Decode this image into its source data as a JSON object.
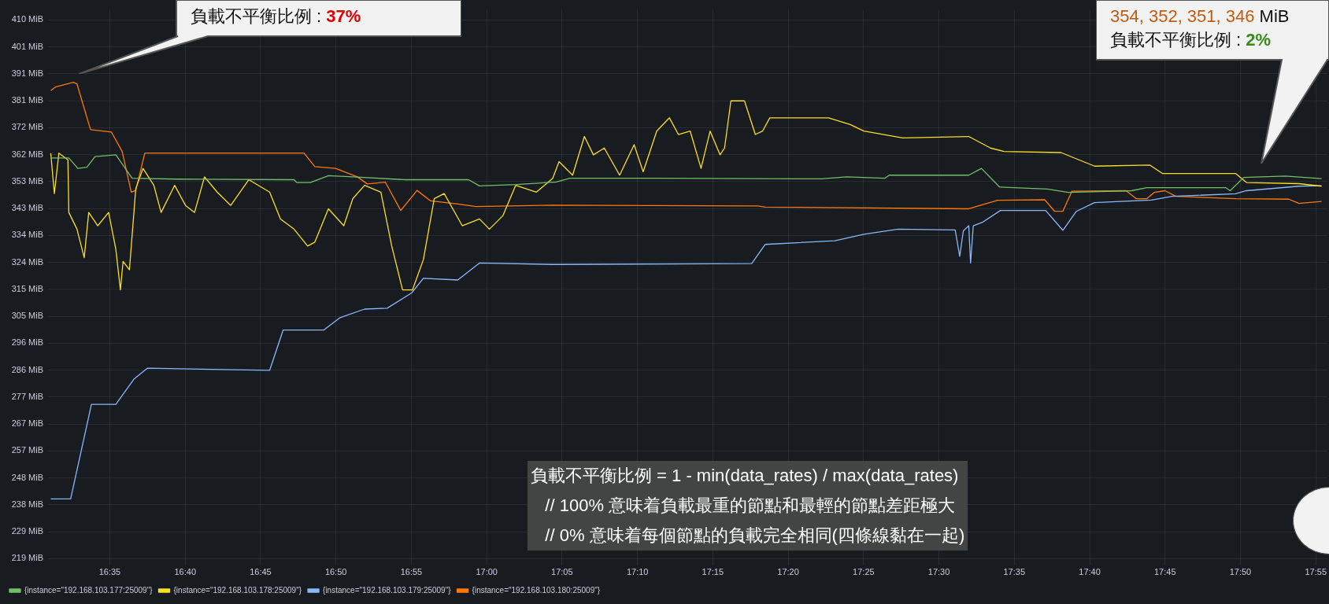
{
  "chart_data": {
    "type": "line",
    "marker": "none",
    "grid": true,
    "legend": "bottom left",
    "xlim": [
      16.515,
      17.93
    ],
    "xticks": [
      {
        "value": 16.5833,
        "label": "16:35"
      },
      {
        "value": 16.6667,
        "label": "16:40"
      },
      {
        "value": 16.75,
        "label": "16:45"
      },
      {
        "value": 16.8333,
        "label": "16:50"
      },
      {
        "value": 16.9167,
        "label": "16:55"
      },
      {
        "value": 17,
        "label": "17:00"
      },
      {
        "value": 17.0833,
        "label": "17:05"
      },
      {
        "value": 17.1667,
        "label": "17:10"
      },
      {
        "value": 17.25,
        "label": "17:15"
      },
      {
        "value": 17.3333,
        "label": "17:20"
      },
      {
        "value": 17.4167,
        "label": "17:25"
      },
      {
        "value": 17.5,
        "label": "17:30"
      },
      {
        "value": 17.5833,
        "label": "17:35"
      },
      {
        "value": 17.6667,
        "label": "17:40"
      },
      {
        "value": 17.75,
        "label": "17:45"
      },
      {
        "value": 17.8333,
        "label": "17:50"
      },
      {
        "value": 17.9167,
        "label": "17:55"
      }
    ],
    "ylim": [
      217,
      413.6
    ],
    "yticks": [
      {
        "value": 219.35,
        "label": "219 MiB"
      },
      {
        "value": 228.88,
        "label": "229 MiB"
      },
      {
        "value": 238.42,
        "label": "238 MiB"
      },
      {
        "value": 247.96,
        "label": "248 MiB"
      },
      {
        "value": 257.49,
        "label": "257 MiB"
      },
      {
        "value": 267.03,
        "label": "267 MiB"
      },
      {
        "value": 276.57,
        "label": "277 MiB"
      },
      {
        "value": 286.1,
        "label": "286 MiB"
      },
      {
        "value": 295.64,
        "label": "296 MiB"
      },
      {
        "value": 305.18,
        "label": "305 MiB"
      },
      {
        "value": 314.71,
        "label": "315 MiB"
      },
      {
        "value": 324.25,
        "label": "324 MiB"
      },
      {
        "value": 333.79,
        "label": "334 MiB"
      },
      {
        "value": 343.32,
        "label": "343 MiB"
      },
      {
        "value": 352.86,
        "label": "353 MiB"
      },
      {
        "value": 362.4,
        "label": "362 MiB"
      },
      {
        "value": 371.93,
        "label": "372 MiB"
      },
      {
        "value": 381.47,
        "label": "381 MiB"
      },
      {
        "value": 391.01,
        "label": "391 MiB"
      },
      {
        "value": 400.54,
        "label": "401 MiB"
      },
      {
        "value": 410.08,
        "label": "410 MiB"
      }
    ],
    "series": [
      {
        "name": "{instance=\"192.168.103.177:25009\"}",
        "color": "#73bf69",
        "x": [
          16.518,
          16.538,
          16.548,
          16.558,
          16.567,
          16.59,
          16.608,
          16.658,
          16.787,
          16.79,
          16.805,
          16.825,
          16.852,
          16.91,
          16.98,
          16.992,
          17.033,
          17.077,
          17.092,
          17.185,
          17.37,
          17.398,
          17.44,
          17.445,
          17.533,
          17.547,
          17.567,
          17.62,
          17.643,
          17.713,
          17.73,
          17.817,
          17.822,
          17.837,
          17.883,
          17.923
        ],
        "values": [
          361.2,
          361.2,
          357.5,
          357.9,
          361.7,
          362.3,
          354.0,
          353.7,
          353.5,
          352.5,
          352.5,
          354.9,
          354.5,
          353.5,
          353.5,
          351.3,
          351.8,
          352.7,
          354.0,
          354.0,
          353.8,
          354.5,
          354.0,
          355.1,
          355.1,
          357.5,
          350.9,
          350.2,
          349.0,
          349.6,
          350.7,
          350.7,
          349.6,
          354.3,
          354.8,
          353.9
        ]
      },
      {
        "name": "{instance=\"192.168.103.178:25009\"}",
        "color": "#fade2a",
        "x": [
          16.518,
          16.522,
          16.527,
          16.537,
          16.538,
          16.547,
          16.555,
          16.56,
          16.57,
          16.582,
          16.59,
          16.595,
          16.598,
          16.605,
          16.612,
          16.62,
          16.632,
          16.64,
          16.655,
          16.667,
          16.677,
          16.688,
          16.702,
          16.717,
          16.737,
          16.76,
          16.772,
          16.787,
          16.802,
          16.81,
          16.825,
          16.842,
          16.852,
          16.865,
          16.883,
          16.895,
          16.907,
          16.918,
          16.93,
          16.942,
          16.953,
          16.973,
          16.992,
          17.003,
          17.018,
          17.032,
          17.055,
          17.073,
          17.08,
          17.095,
          17.108,
          17.118,
          17.13,
          17.147,
          17.163,
          17.173,
          17.188,
          17.202,
          17.212,
          17.225,
          17.237,
          17.247,
          17.258,
          17.263,
          17.27,
          17.285,
          17.297,
          17.305,
          17.313,
          17.378,
          17.402,
          17.417,
          17.46,
          17.533,
          17.557,
          17.572,
          17.635,
          17.672,
          17.733,
          17.747,
          17.828,
          17.84,
          17.898,
          17.923
        ],
        "values": [
          362.9,
          348.6,
          362.9,
          360.5,
          341.9,
          336.0,
          325.9,
          341.9,
          337.2,
          341.9,
          328.8,
          314.5,
          324.6,
          321.6,
          350.3,
          357.5,
          351.5,
          341.9,
          351.5,
          344.4,
          341.9,
          354.5,
          349.1,
          344.4,
          353.5,
          349.1,
          339.6,
          336.0,
          330.0,
          331.4,
          343.2,
          337.2,
          346.8,
          351.5,
          349.1,
          330.0,
          314.5,
          314.5,
          325.2,
          346.8,
          348.6,
          337.2,
          339.6,
          336.0,
          340.8,
          351.5,
          349.1,
          354.0,
          359.9,
          355.1,
          368.8,
          362.3,
          364.7,
          355.1,
          365.9,
          356.3,
          370.7,
          375.4,
          369.5,
          370.7,
          357.5,
          370.7,
          362.3,
          364.7,
          381.4,
          381.4,
          369.5,
          370.7,
          375.4,
          375.4,
          373.0,
          370.7,
          368.3,
          368.8,
          364.7,
          363.5,
          363.1,
          358.3,
          358.7,
          355.7,
          355.7,
          352.5,
          352.1,
          351.2
        ]
      },
      {
        "name": "{instance=\"192.168.103.179:25009\"}",
        "color": "#8ab8ff",
        "x": [
          16.518,
          16.54,
          16.563,
          16.59,
          16.61,
          16.625,
          16.76,
          16.775,
          16.82,
          16.838,
          16.865,
          16.89,
          16.917,
          16.93,
          16.968,
          16.992,
          17.073,
          17.293,
          17.308,
          17.385,
          17.417,
          17.455,
          17.518,
          17.523,
          17.527,
          17.533,
          17.535,
          17.538,
          17.548,
          17.568,
          17.618,
          17.637,
          17.652,
          17.672,
          17.735,
          17.758,
          17.828,
          17.84,
          17.898,
          17.923
        ],
        "values": [
          240.5,
          240.5,
          274.0,
          274.0,
          282.9,
          286.8,
          286.0,
          300.3,
          300.3,
          304.7,
          307.7,
          308.0,
          313.4,
          318.6,
          318.0,
          324.0,
          323.5,
          323.8,
          330.6,
          331.9,
          334.2,
          336.0,
          335.7,
          326.4,
          335.4,
          337.2,
          324.0,
          337.2,
          338.4,
          342.6,
          342.6,
          335.6,
          342.3,
          345.4,
          346.3,
          347.6,
          348.5,
          349.6,
          351.2,
          351.4
        ]
      },
      {
        "name": "{instance=\"192.168.103.180:25009\"}",
        "color": "#ff780a",
        "x": [
          16.518,
          16.523,
          16.543,
          16.547,
          16.562,
          16.585,
          16.597,
          16.607,
          16.612,
          16.622,
          16.798,
          16.81,
          16.833,
          16.857,
          16.868,
          16.888,
          16.905,
          16.923,
          16.938,
          16.968,
          16.988,
          17.073,
          17.3,
          17.308,
          17.533,
          17.565,
          17.617,
          17.628,
          17.637,
          17.647,
          17.707,
          17.718,
          17.73,
          17.738,
          17.75,
          17.762,
          17.828,
          17.887,
          17.898,
          17.923
        ],
        "values": [
          385.0,
          386.3,
          388.0,
          387.4,
          371.2,
          370.4,
          363.5,
          349.1,
          349.7,
          362.9,
          362.9,
          358.1,
          357.5,
          354.5,
          352.0,
          352.6,
          342.6,
          349.7,
          346.0,
          344.9,
          344.0,
          344.5,
          344.2,
          343.8,
          343.2,
          346.2,
          346.4,
          342.3,
          342.3,
          349.4,
          349.6,
          346.8,
          346.8,
          349.0,
          349.6,
          347.6,
          346.8,
          346.6,
          345.1,
          345.8
        ]
      }
    ],
    "annotations": [
      "負載不平衡比例 : 37%",
      "354, 352, 351, 346 MiB\n負載不平衡比例 : 2%",
      "負載不平衡比例 = 1 - min(data_rates) / max(data_rates)\n   // 100% 意味着負載最重的節點和最輕的節點差距極大\n   // 0% 意味着每個節點的負載完全相同(四條線黏在一起)"
    ]
  }
}
